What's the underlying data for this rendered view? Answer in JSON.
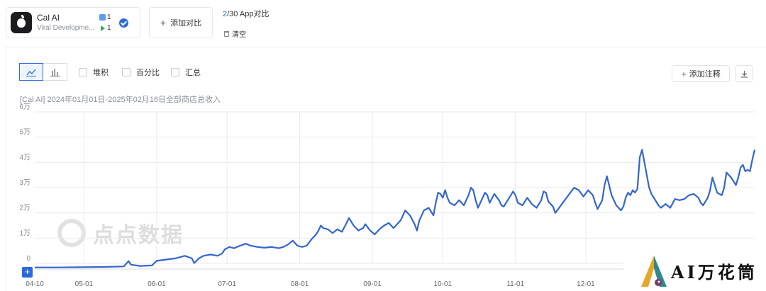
{
  "app": {
    "name": "Cal AI",
    "developer": "Viral Developme...",
    "ios_count": "1",
    "gp_count": "1"
  },
  "compare": {
    "add_label": "添加对比",
    "current": "2",
    "rest": "/30 App对比",
    "clear_label": "清空"
  },
  "toolbar": {
    "stack_label": "堆积",
    "percent_label": "百分比",
    "sum_label": "汇总",
    "add_note_label": "添加注释"
  },
  "subtitle": "[Cal AI] 2024年01月01日-2025年02月16日全部商店总收入",
  "watermark": "点点数据",
  "brand": "AI万花筒",
  "colors": {
    "line": "#3366cc",
    "accent": "#2b6bd9",
    "grid": "#e8eaed"
  },
  "chart_data": {
    "type": "line",
    "ylabel_ticks": [
      "0",
      "1万",
      "2万",
      "3万",
      "4万",
      "5万",
      "6万"
    ],
    "ylim": [
      0,
      60000
    ],
    "x_ticks": [
      "04-10",
      "05-01",
      "06-01",
      "07-01",
      "08-01",
      "09-01",
      "10-01",
      "11-01",
      "12-01"
    ],
    "x_tick_days": [
      0,
      21,
      52,
      82,
      113,
      144,
      174,
      205,
      235
    ],
    "x_range": [
      0,
      307
    ],
    "series": [
      {
        "points": [
          [
            0,
            -1600
          ],
          [
            10,
            -1600
          ],
          [
            20,
            -1500
          ],
          [
            30,
            -1400
          ],
          [
            38,
            -1200
          ],
          [
            40,
            900
          ],
          [
            41,
            -500
          ],
          [
            45,
            -1000
          ],
          [
            50,
            -800
          ],
          [
            52,
            1000
          ],
          [
            56,
            1500
          ],
          [
            60,
            2000
          ],
          [
            64,
            3000
          ],
          [
            67,
            2000
          ],
          [
            68,
            100
          ],
          [
            70,
            2000
          ],
          [
            72,
            3000
          ],
          [
            75,
            3500
          ],
          [
            78,
            3000
          ],
          [
            80,
            4000
          ],
          [
            81,
            5500
          ],
          [
            83,
            6500
          ],
          [
            85,
            6000
          ],
          [
            87,
            6800
          ],
          [
            90,
            7800
          ],
          [
            92,
            7000
          ],
          [
            95,
            6500
          ],
          [
            98,
            6200
          ],
          [
            101,
            6500
          ],
          [
            104,
            6000
          ],
          [
            106,
            6500
          ],
          [
            108,
            7500
          ],
          [
            110,
            9000
          ],
          [
            112,
            7000
          ],
          [
            114,
            6500
          ],
          [
            116,
            7000
          ],
          [
            118,
            9500
          ],
          [
            120,
            11500
          ],
          [
            121,
            13000
          ],
          [
            122,
            15000
          ],
          [
            123,
            14000
          ],
          [
            125,
            13500
          ],
          [
            127,
            12000
          ],
          [
            129,
            13500
          ],
          [
            131,
            12500
          ],
          [
            133,
            16000
          ],
          [
            134,
            18000
          ],
          [
            136,
            15000
          ],
          [
            138,
            13000
          ],
          [
            140,
            14000
          ],
          [
            141,
            15500
          ],
          [
            143,
            13000
          ],
          [
            145,
            11500
          ],
          [
            147,
            13500
          ],
          [
            149,
            15000
          ],
          [
            151,
            16000
          ],
          [
            153,
            14000
          ],
          [
            156,
            17000
          ],
          [
            158,
            21000
          ],
          [
            160,
            19000
          ],
          [
            162,
            15500
          ],
          [
            163,
            13000
          ],
          [
            164,
            17000
          ],
          [
            166,
            21000
          ],
          [
            168,
            22000
          ],
          [
            170,
            19000
          ],
          [
            171,
            24000
          ],
          [
            172,
            28000
          ],
          [
            173,
            27500
          ],
          [
            174,
            26000
          ],
          [
            175,
            29000
          ],
          [
            176,
            26000
          ],
          [
            177,
            24000
          ],
          [
            179,
            23000
          ],
          [
            181,
            25000
          ],
          [
            183,
            23000
          ],
          [
            185,
            27000
          ],
          [
            186,
            30000
          ],
          [
            187,
            29000
          ],
          [
            188,
            25000
          ],
          [
            189,
            22000
          ],
          [
            191,
            26000
          ],
          [
            192,
            28000
          ],
          [
            193,
            27000
          ],
          [
            194,
            24000
          ],
          [
            196,
            27500
          ],
          [
            198,
            25000
          ],
          [
            199,
            23000
          ],
          [
            200,
            22500
          ],
          [
            202,
            25500
          ],
          [
            204,
            28500
          ],
          [
            205,
            27000
          ],
          [
            206,
            24000
          ],
          [
            208,
            23000
          ],
          [
            210,
            26000
          ],
          [
            212,
            23500
          ],
          [
            214,
            22000
          ],
          [
            216,
            25000
          ],
          [
            217,
            28500
          ],
          [
            218,
            28000
          ],
          [
            219,
            24500
          ],
          [
            221,
            22500
          ],
          [
            222,
            20000
          ],
          [
            224,
            22500
          ],
          [
            226,
            25000
          ],
          [
            228,
            27500
          ],
          [
            230,
            30000
          ],
          [
            232,
            29000
          ],
          [
            234,
            26500
          ],
          [
            236,
            29000
          ],
          [
            238,
            27000
          ],
          [
            239,
            24000
          ],
          [
            240,
            21500
          ],
          [
            242,
            25000
          ],
          [
            243,
            31000
          ],
          [
            244,
            34500
          ],
          [
            246,
            27000
          ],
          [
            248,
            23000
          ],
          [
            250,
            21000
          ],
          [
            251,
            22500
          ],
          [
            252,
            26000
          ],
          [
            253,
            28000
          ],
          [
            254,
            27000
          ],
          [
            255,
            29000
          ],
          [
            256,
            28000
          ],
          [
            257,
            29500
          ],
          [
            258,
            42000
          ],
          [
            259,
            45000
          ],
          [
            260,
            40000
          ],
          [
            261,
            35000
          ],
          [
            262,
            30000
          ],
          [
            263,
            27500
          ],
          [
            264,
            26000
          ],
          [
            266,
            23000
          ],
          [
            267,
            22000
          ],
          [
            269,
            23500
          ],
          [
            271,
            22000
          ],
          [
            273,
            25500
          ],
          [
            275,
            25000
          ],
          [
            277,
            25500
          ],
          [
            279,
            27000
          ],
          [
            281,
            27500
          ],
          [
            283,
            26000
          ],
          [
            284,
            24000
          ],
          [
            285,
            23000
          ],
          [
            287,
            26000
          ],
          [
            288,
            29000
          ],
          [
            289,
            34000
          ],
          [
            291,
            28000
          ],
          [
            293,
            27000
          ],
          [
            294,
            30000
          ],
          [
            295,
            36000
          ],
          [
            296,
            35000
          ],
          [
            297,
            34000
          ],
          [
            299,
            31000
          ],
          [
            300,
            34000
          ],
          [
            301,
            38000
          ],
          [
            302,
            39000
          ],
          [
            303,
            36500
          ],
          [
            304,
            37000
          ],
          [
            305,
            36500
          ],
          [
            306,
            41000
          ],
          [
            307,
            45000
          ]
        ]
      }
    ]
  }
}
